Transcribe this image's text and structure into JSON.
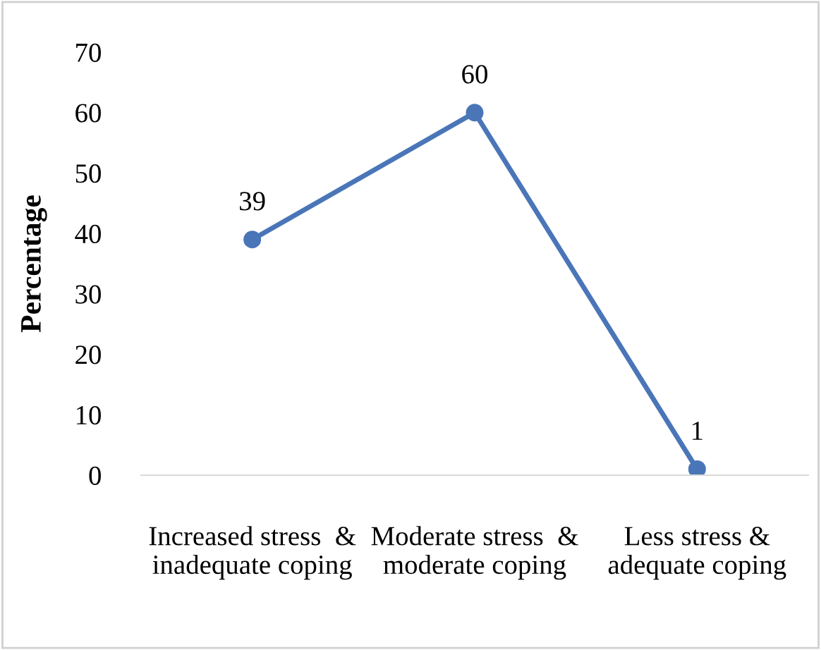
{
  "chart_data": {
    "type": "line",
    "ylabel": "Percentage",
    "categories": [
      "Increased stress  &\ninadequate coping",
      "Moderate stress  &\nmoderate coping",
      "Less stress &\nadequate coping"
    ],
    "series": [
      {
        "color": "#4a76b8",
        "values": [
          39,
          60,
          1
        ]
      }
    ],
    "ylim": [
      0,
      70
    ],
    "yticks": [
      0,
      10,
      20,
      30,
      40,
      50,
      60,
      70
    ],
    "data_labels": true,
    "marker": "circle",
    "line_style": "solid",
    "grid": false,
    "legend": false
  }
}
